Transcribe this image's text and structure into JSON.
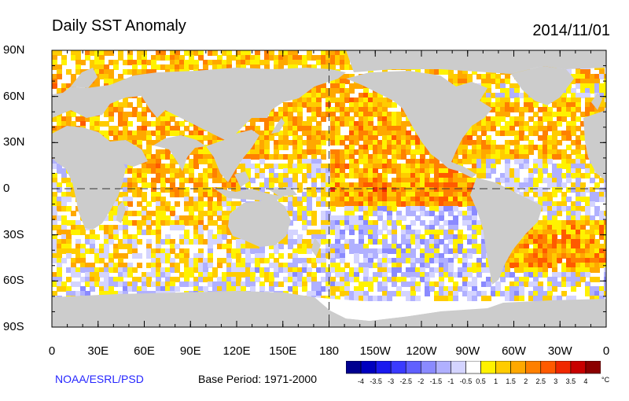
{
  "header": {
    "title": "Daily SST Anomaly",
    "date": "2014/11/01"
  },
  "map": {
    "lat_ticks": [
      "90N",
      "60N",
      "30N",
      "0",
      "30S",
      "60S",
      "90S"
    ],
    "lon_ticks": [
      "0",
      "30E",
      "60E",
      "90E",
      "120E",
      "150E",
      "180",
      "150W",
      "120W",
      "90W",
      "60W",
      "30W",
      "0"
    ],
    "land_color": "#cccccc",
    "ice_color": "#ffffff",
    "ocean_base": "#ffffff"
  },
  "footer": {
    "credit": "NOAA/ESRL/PSD",
    "base_period": "Base Period: 1971-2000"
  },
  "colorbar": {
    "unit": "°C",
    "labels": [
      "-4",
      "-3.5",
      "-3",
      "-2.5",
      "-2",
      "-1.5",
      "-1",
      "-0.5",
      "0.5",
      "1",
      "1.5",
      "2",
      "2.5",
      "3",
      "3.5",
      "4"
    ],
    "colors": [
      "#00008f",
      "#0000bf",
      "#1a1aef",
      "#3a3aff",
      "#6060ff",
      "#8a8aff",
      "#b0b0ff",
      "#d4d4ff",
      "#ffffff",
      "#fff200",
      "#ffcc00",
      "#ffa800",
      "#ff8000",
      "#ff5a00",
      "#f02800",
      "#c80000",
      "#8b0000"
    ]
  }
}
